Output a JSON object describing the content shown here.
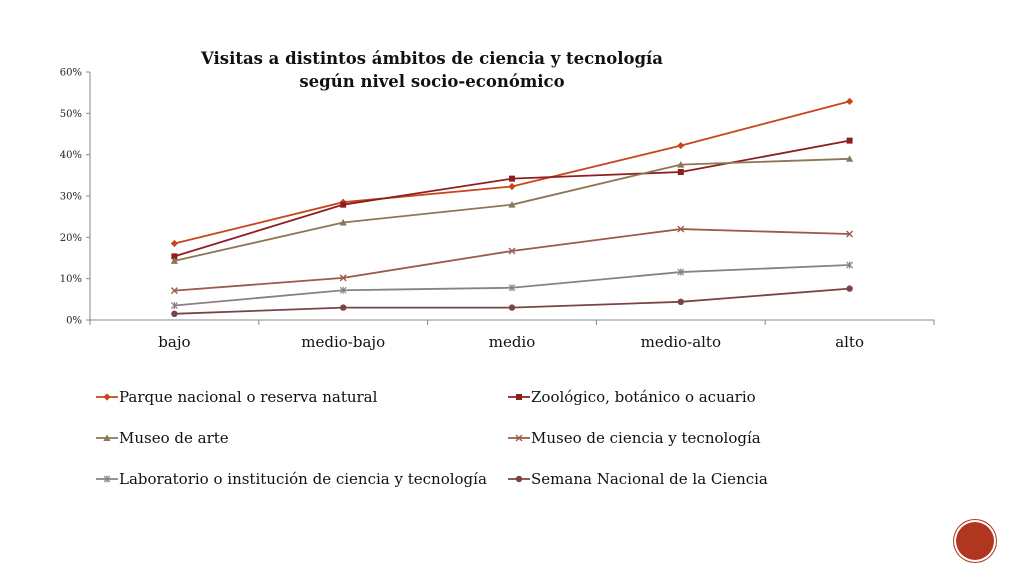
{
  "colors": {
    "axis": "#888888",
    "badge": "#b0361f"
  },
  "chart_data": {
    "type": "line",
    "title_lines": [
      "Visitas a distintos ámbitos de ciencia y tecnología",
      "según nivel socio-económico"
    ],
    "categories": [
      "bajo",
      "medio-bajo",
      "medio",
      "medio-alto",
      "alto"
    ],
    "y_ticks": [
      "0%",
      "10%",
      "20%",
      "30%",
      "40%",
      "50%",
      "60%"
    ],
    "ylim": [
      0,
      60
    ],
    "y_unit": "%",
    "grid": false,
    "legend_position": "bottom",
    "series": [
      {
        "name": "Parque  nacional o reserva natural",
        "color": "#c8461b",
        "marker": "diamond",
        "values": [
          18.5,
          28.5,
          32.3,
          42.2,
          52.9
        ]
      },
      {
        "name": "Zoológico, botánico o acuario",
        "color": "#8e1e1e",
        "marker": "square",
        "values": [
          15.4,
          27.9,
          34.2,
          35.8,
          43.4
        ]
      },
      {
        "name": "Museo de arte",
        "color": "#8b7754",
        "marker": "triangle",
        "values": [
          14.3,
          23.6,
          27.9,
          37.6,
          39.0
        ]
      },
      {
        "name": "Museo de ciencia y tecnología",
        "color": "#9b5a4a",
        "marker": "x",
        "values": [
          7.1,
          10.2,
          16.7,
          22.0,
          20.8
        ]
      },
      {
        "name": "Laboratorio o institución de ciencia y tecnología",
        "color": "#8a8088",
        "marker": "asterisk",
        "values": [
          3.5,
          7.2,
          7.8,
          11.6,
          13.3
        ]
      },
      {
        "name": "Semana Nacional de la Ciencia",
        "color": "#7a4444",
        "marker": "circle",
        "values": [
          1.5,
          3.0,
          3.0,
          4.4,
          7.6
        ]
      }
    ]
  }
}
